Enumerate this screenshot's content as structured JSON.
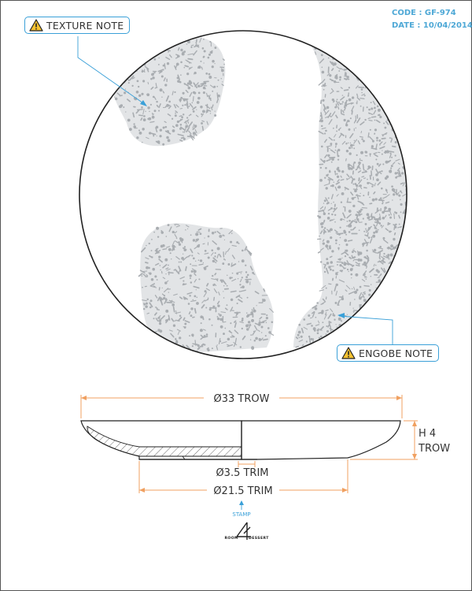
{
  "header": {
    "code": "CODE : GF-974",
    "date": "DATE : 10/04/2014"
  },
  "notes": {
    "texture": "TEXTURE NOTE",
    "engobe": "ENGOBE NOTE",
    "icon": "warning-triangle-icon"
  },
  "dimensions": {
    "diameter_label": "Ø33 TROW",
    "height_label_1": "H 4",
    "height_label_2": "TROW",
    "foot_trim_label": "Ø3.5 TRIM",
    "base_trim_label": "Ø21.5 TRIM"
  },
  "stamp": {
    "label": "STAMP",
    "logo_left": "ROOM",
    "logo_right": "DESSERT"
  },
  "colors": {
    "accent": "#3aa0d8",
    "dimension": "#f0a060",
    "outline": "#222222",
    "texture_fill": "#e2e4e6",
    "speckle": "#a9adb1"
  }
}
